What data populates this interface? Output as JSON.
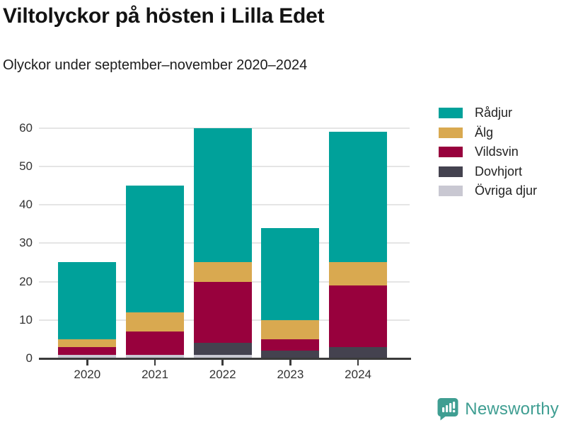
{
  "header": {
    "title": "Viltolyckor på hösten i Lilla Edet",
    "subtitle": "Olyckor under september–november 2020–2024"
  },
  "chart_data": {
    "type": "bar",
    "stacked": true,
    "title": "Viltolyckor på hösten i Lilla Edet",
    "subtitle": "Olyckor under september–november 2020–2024",
    "categories": [
      "2020",
      "2021",
      "2022",
      "2023",
      "2024"
    ],
    "series": [
      {
        "name": "Rådjur",
        "color": "#00a19a",
        "values": [
          20,
          33,
          35,
          24,
          34
        ]
      },
      {
        "name": "Älg",
        "color": "#d9a950",
        "values": [
          2,
          5,
          5,
          5,
          6
        ]
      },
      {
        "name": "Vildsvin",
        "color": "#98013d",
        "values": [
          2,
          6,
          16,
          3,
          16
        ]
      },
      {
        "name": "Dovhjort",
        "color": "#44424f",
        "values": [
          0,
          0,
          3,
          2,
          3
        ]
      },
      {
        "name": "Övriga djur",
        "color": "#c9c8d2",
        "values": [
          1,
          1,
          1,
          0,
          0
        ]
      }
    ],
    "totals": [
      25,
      45,
      60,
      34,
      59
    ],
    "ylim": [
      0,
      60
    ],
    "yticks": [
      0,
      10,
      20,
      30,
      40,
      50,
      60
    ],
    "grid": true,
    "legend_position": "top-right",
    "stack_order": "series listed top-of-stack first; stacking bottom-up uses reverse order"
  },
  "style_colors": {
    "axis": "#3b3b3b",
    "gridline": "#e5e5e5",
    "tick_label": "#333333"
  },
  "footer": {
    "brand": "Newsworthy",
    "brand_color": "#3f9e92"
  }
}
